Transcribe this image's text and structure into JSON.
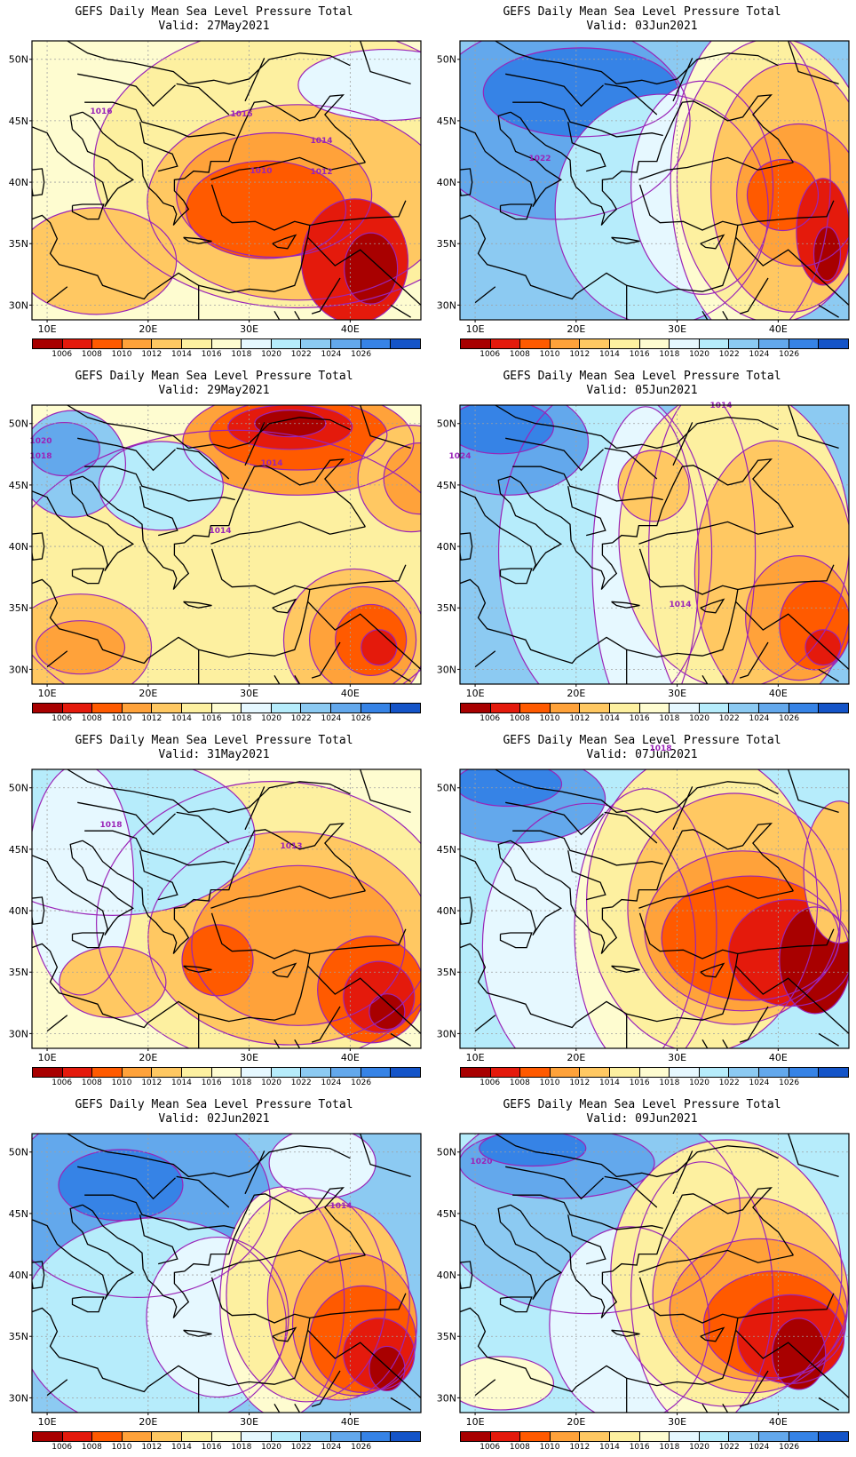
{
  "colors": {
    "scale": [
      "#a80000",
      "#e41a0c",
      "#ff5a00",
      "#ffa23a",
      "#ffc862",
      "#fdf0a0",
      "#fefcd0",
      "#e6f8ff",
      "#b6ecfb",
      "#8ccaf2",
      "#63a8ec",
      "#3683e6",
      "#1454c8"
    ],
    "contour": "#9a24b8",
    "land_border": "#000000",
    "grid": "#a0a0a0"
  },
  "colorbar": {
    "labels": [
      "1006",
      "1008",
      "1010",
      "1012",
      "1014",
      "1016",
      "1018",
      "1020",
      "1022",
      "1024",
      "1026"
    ]
  },
  "axes": {
    "lon_ticks": [
      "10E",
      "20E",
      "30E",
      "40E"
    ],
    "lat_ticks": [
      "50N",
      "45N",
      "40N",
      "35N",
      "30N"
    ]
  },
  "panels": [
    {
      "title": "GEFS Daily Mean Sea Level Pressure Total",
      "valid": "Valid: 27May2021",
      "contour_labels": [
        {
          "text": "1016"
        },
        {
          "text": "1016"
        },
        {
          "text": "1014"
        },
        {
          "text": "1010"
        },
        {
          "text": "1012"
        }
      ]
    },
    {
      "title": "GEFS Daily Mean Sea Level Pressure Total",
      "valid": "Valid: 03Jun2021",
      "contour_labels": [
        {
          "text": "1022"
        }
      ]
    },
    {
      "title": "GEFS Daily Mean Sea Level Pressure Total",
      "valid": "Valid: 29May2021",
      "contour_labels": [
        {
          "text": "1020"
        },
        {
          "text": "1018"
        },
        {
          "text": "1014"
        },
        {
          "text": "1014"
        }
      ]
    },
    {
      "title": "GEFS Daily Mean Sea Level Pressure Total",
      "valid": "Valid: 05Jun2021",
      "contour_labels": [
        {
          "text": "1014"
        },
        {
          "text": "1024"
        },
        {
          "text": "1014"
        }
      ]
    },
    {
      "title": "GEFS Daily Mean Sea Level Pressure Total",
      "valid": "Valid: 31May2021",
      "contour_labels": [
        {
          "text": "1018"
        },
        {
          "text": "1013"
        }
      ]
    },
    {
      "title": "GEFS Daily Mean Sea Level Pressure Total",
      "valid": "Valid: 07Jun2021",
      "contour_labels": [
        {
          "text": "1018"
        }
      ]
    },
    {
      "title": "GEFS Daily Mean Sea Level Pressure Total",
      "valid": "Valid: 02Jun2021",
      "contour_labels": [
        {
          "text": "1014"
        }
      ]
    },
    {
      "title": "GEFS Daily Mean Sea Level Pressure Total",
      "valid": "Valid: 09Jun2021",
      "contour_labels": [
        {
          "text": "1020"
        }
      ]
    }
  ]
}
